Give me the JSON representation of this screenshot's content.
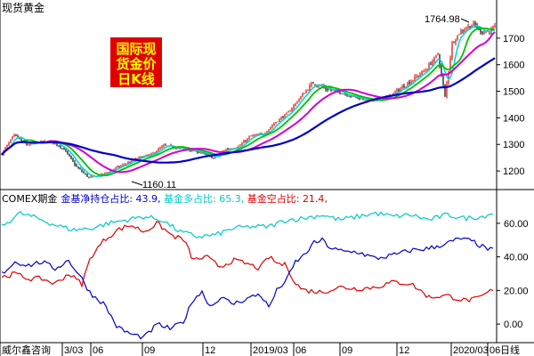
{
  "chart_data": [
    {
      "type": "candlestick",
      "title": "现货黄金",
      "stamp_lines": [
        "国际现",
        "货金价",
        "日K线"
      ],
      "y_ticks": [
        1200,
        1300,
        1400,
        1500,
        1600,
        1700
      ],
      "ylim": [
        1140,
        1790
      ],
      "max_label": "1764.98",
      "min_label": "1160.11",
      "series_colors": {
        "up": "#e00000",
        "down": "#000000",
        "ma_short": "#00d8d8",
        "ma_mid": "#00c000",
        "ma_long": "#d000d0",
        "ma_longest": "#0000c8"
      },
      "anchors": [
        [
          0,
          1265
        ],
        [
          14,
          1335
        ],
        [
          28,
          1298
        ],
        [
          42,
          1308
        ],
        [
          56,
          1312
        ],
        [
          70,
          1282
        ],
        [
          84,
          1215
        ],
        [
          98,
          1175
        ],
        [
          112,
          1185
        ],
        [
          126,
          1208
        ],
        [
          140,
          1228
        ],
        [
          154,
          1250
        ],
        [
          168,
          1262
        ],
        [
          182,
          1295
        ],
        [
          196,
          1288
        ],
        [
          210,
          1280
        ],
        [
          224,
          1270
        ],
        [
          238,
          1248
        ],
        [
          252,
          1282
        ],
        [
          266,
          1292
        ],
        [
          280,
          1332
        ],
        [
          294,
          1338
        ],
        [
          308,
          1385
        ],
        [
          322,
          1420
        ],
        [
          336,
          1480
        ],
        [
          350,
          1532
        ],
        [
          364,
          1510
        ],
        [
          378,
          1498
        ],
        [
          392,
          1482
        ],
        [
          406,
          1470
        ],
        [
          420,
          1462
        ],
        [
          434,
          1480
        ],
        [
          448,
          1510
        ],
        [
          462,
          1545
        ],
        [
          476,
          1580
        ],
        [
          490,
          1640
        ],
        [
          498,
          1480
        ],
        [
          506,
          1680
        ],
        [
          514,
          1720
        ],
        [
          522,
          1740
        ],
        [
          530,
          1752
        ],
        [
          540,
          1722
        ],
        [
          550,
          1730
        ],
        [
          555,
          1745
        ]
      ]
    },
    {
      "type": "line",
      "title": "COMEX期金",
      "legend": [
        {
          "label": "金基净持仓占比: ",
          "value": "43.9",
          "color": "#0000cc"
        },
        {
          "label": "基金多占比: ",
          "value": "65.3",
          "color": "#00c8c8"
        },
        {
          "label": "基金空占比: ",
          "value": "21.4",
          "color": "#e00000"
        }
      ],
      "y_ticks": [
        "0.00",
        "20.00",
        "40.00",
        "60.00"
      ],
      "ylim": [
        -10,
        70
      ],
      "x_ticks": [
        "3/03",
        "06",
        "09",
        "12",
        "2019/03",
        "06",
        "09",
        "12",
        "2020/03",
        "06"
      ],
      "footer_left": "威尔鑫咨询",
      "footer_right": "日线",
      "series": [
        {
          "key": "long",
          "color": "#00c8c8",
          "anchors": [
            [
              0,
              58
            ],
            [
              20,
              66
            ],
            [
              40,
              63
            ],
            [
              60,
              59
            ],
            [
              80,
              56
            ],
            [
              100,
              57
            ],
            [
              120,
              60
            ],
            [
              140,
              62
            ],
            [
              160,
              64
            ],
            [
              180,
              62
            ],
            [
              200,
              55
            ],
            [
              220,
              52
            ],
            [
              240,
              53
            ],
            [
              260,
              57
            ],
            [
              280,
              58
            ],
            [
              300,
              58
            ],
            [
              320,
              62
            ],
            [
              340,
              63
            ],
            [
              360,
              65
            ],
            [
              380,
              62
            ],
            [
              400,
              64
            ],
            [
              420,
              66
            ],
            [
              440,
              64
            ],
            [
              460,
              65
            ],
            [
              480,
              62
            ],
            [
              500,
              65
            ],
            [
              520,
              63
            ],
            [
              540,
              64
            ],
            [
              550,
              66
            ]
          ]
        },
        {
          "key": "short",
          "color": "#e00000",
          "anchors": [
            [
              0,
              28
            ],
            [
              15,
              30
            ],
            [
              30,
              27
            ],
            [
              45,
              27
            ],
            [
              60,
              24
            ],
            [
              75,
              30
            ],
            [
              90,
              24
            ],
            [
              100,
              40
            ],
            [
              115,
              50
            ],
            [
              130,
              56
            ],
            [
              145,
              59
            ],
            [
              160,
              55
            ],
            [
              175,
              60
            ],
            [
              190,
              53
            ],
            [
              205,
              50
            ],
            [
              215,
              38
            ],
            [
              230,
              40
            ],
            [
              245,
              34
            ],
            [
              260,
              38
            ],
            [
              275,
              36
            ],
            [
              290,
              33
            ],
            [
              300,
              40
            ],
            [
              310,
              36
            ],
            [
              320,
              35
            ],
            [
              330,
              24
            ],
            [
              340,
              20
            ],
            [
              360,
              19
            ],
            [
              380,
              22
            ],
            [
              400,
              21
            ],
            [
              420,
              22
            ],
            [
              440,
              25
            ],
            [
              460,
              24
            ],
            [
              480,
              16
            ],
            [
              500,
              17
            ],
            [
              520,
              14
            ],
            [
              535,
              15
            ],
            [
              550,
              20
            ]
          ]
        },
        {
          "key": "net",
          "color": "#0000cc",
          "anchors": [
            [
              0,
              30
            ],
            [
              15,
              37
            ],
            [
              30,
              35
            ],
            [
              45,
              37
            ],
            [
              60,
              33
            ],
            [
              75,
              38
            ],
            [
              90,
              27
            ],
            [
              100,
              18
            ],
            [
              115,
              12
            ],
            [
              130,
              -2
            ],
            [
              145,
              -6
            ],
            [
              160,
              -8
            ],
            [
              175,
              0
            ],
            [
              190,
              -3
            ],
            [
              205,
              2
            ],
            [
              215,
              15
            ],
            [
              225,
              19
            ],
            [
              235,
              10
            ],
            [
              245,
              16
            ],
            [
              260,
              12
            ],
            [
              275,
              15
            ],
            [
              290,
              18
            ],
            [
              300,
              10
            ],
            [
              310,
              21
            ],
            [
              320,
              26
            ],
            [
              330,
              37
            ],
            [
              340,
              41
            ],
            [
              350,
              48
            ],
            [
              360,
              50
            ],
            [
              370,
              45
            ],
            [
              385,
              43
            ],
            [
              400,
              43
            ],
            [
              420,
              39
            ],
            [
              440,
              41
            ],
            [
              460,
              44
            ],
            [
              480,
              45
            ],
            [
              500,
              48
            ],
            [
              515,
              51
            ],
            [
              530,
              49
            ],
            [
              540,
              46
            ],
            [
              550,
              44
            ]
          ]
        }
      ]
    }
  ]
}
